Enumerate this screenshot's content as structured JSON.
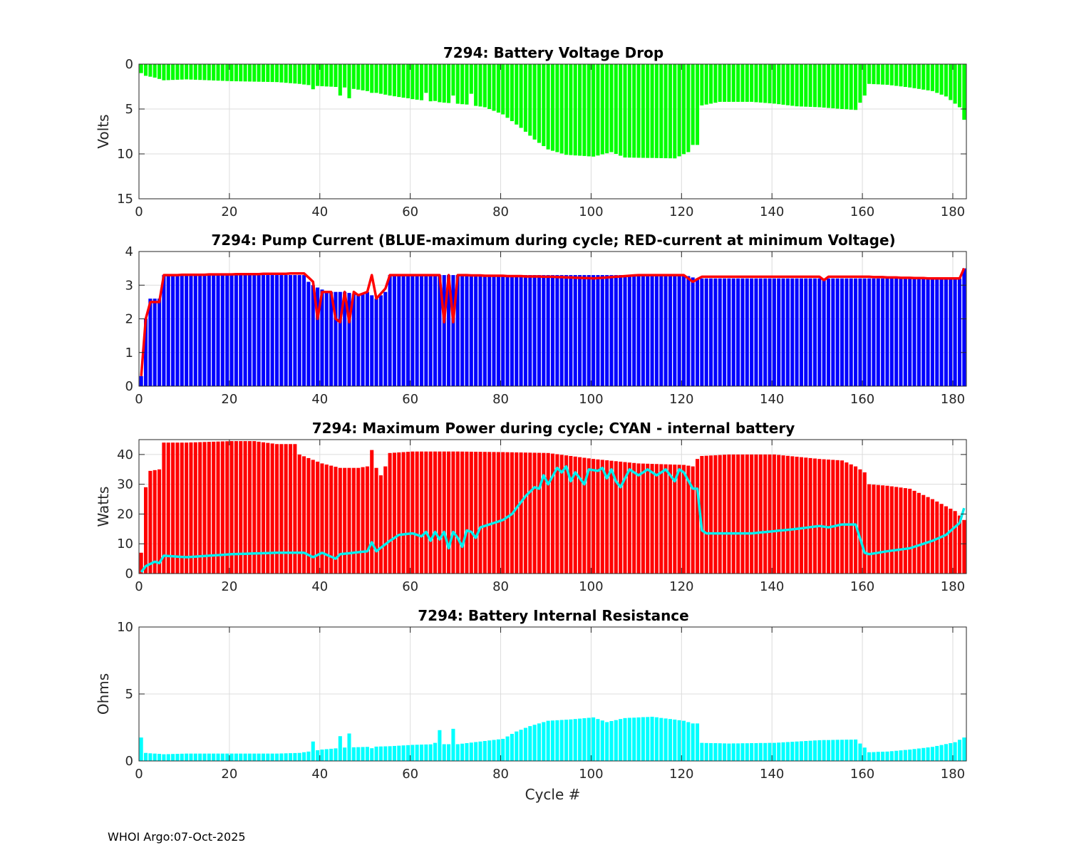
{
  "footer": "WHOI Argo:07-Oct-2025",
  "chart_data": [
    {
      "type": "bar",
      "title": "7294: Battery Voltage Drop",
      "xlabel": "",
      "ylabel": "Volts",
      "xlim": [
        0,
        183
      ],
      "ylim": [
        0,
        15
      ],
      "y_reversed": true,
      "xticks": [
        0,
        20,
        40,
        60,
        80,
        100,
        120,
        140,
        160,
        180
      ],
      "yticks": [
        0,
        5,
        10,
        15
      ],
      "grid": true,
      "colors": {
        "bar": "#00ff00"
      },
      "anchors": [
        [
          0,
          1.0
        ],
        [
          1,
          1.3
        ],
        [
          3,
          1.5
        ],
        [
          5,
          1.8
        ],
        [
          10,
          1.7
        ],
        [
          20,
          1.9
        ],
        [
          30,
          2.0
        ],
        [
          35,
          2.2
        ],
        [
          38,
          2.4
        ],
        [
          45,
          2.6
        ],
        [
          50,
          3.0
        ],
        [
          55,
          3.5
        ],
        [
          60,
          3.9
        ],
        [
          65,
          4.2
        ],
        [
          72,
          4.5
        ],
        [
          76,
          4.8
        ],
        [
          80,
          5.6
        ],
        [
          84,
          7.1
        ],
        [
          87,
          8.4
        ],
        [
          90,
          9.5
        ],
        [
          94,
          10.1
        ],
        [
          100,
          10.3
        ],
        [
          104,
          9.8
        ],
        [
          107,
          10.4
        ],
        [
          118,
          10.5
        ],
        [
          121,
          9.8
        ],
        [
          122,
          9.0
        ],
        [
          123,
          9.0
        ],
        [
          124,
          4.6
        ],
        [
          128,
          4.2
        ],
        [
          135,
          4.2
        ],
        [
          140,
          4.4
        ],
        [
          145,
          4.7
        ],
        [
          150,
          4.8
        ],
        [
          155,
          5.0
        ],
        [
          158,
          5.1
        ],
        [
          160,
          3.5
        ],
        [
          161,
          2.2
        ],
        [
          165,
          2.3
        ],
        [
          170,
          2.6
        ],
        [
          175,
          3.0
        ],
        [
          178,
          3.6
        ],
        [
          181,
          4.8
        ],
        [
          182,
          6.2
        ]
      ],
      "spikes": [
        [
          38,
          2.8
        ],
        [
          44,
          3.5
        ],
        [
          46,
          3.8
        ],
        [
          51,
          3.2
        ],
        [
          59,
          3.8
        ],
        [
          63,
          3.2
        ],
        [
          65,
          4.1
        ],
        [
          69,
          3.5
        ],
        [
          73,
          3.3
        ]
      ]
    },
    {
      "type": "bar",
      "title": "7294: Pump Current (BLUE-maximum during cycle; RED-current at minimum Voltage)",
      "xlabel": "",
      "ylabel": "",
      "xlim": [
        0,
        183
      ],
      "ylim": [
        0,
        4
      ],
      "xticks": [
        0,
        20,
        40,
        60,
        80,
        100,
        120,
        140,
        160,
        180
      ],
      "yticks": [
        0,
        1,
        2,
        3,
        4
      ],
      "grid": true,
      "colors": {
        "bar": "#0000ff",
        "line": "#ff0000"
      },
      "bar_anchors": [
        [
          0,
          0.3
        ],
        [
          1,
          2.0
        ],
        [
          2,
          2.6
        ],
        [
          4,
          2.6
        ],
        [
          5,
          3.3
        ],
        [
          36,
          3.3
        ],
        [
          37,
          3.1
        ],
        [
          38,
          3.0
        ],
        [
          41,
          2.8
        ],
        [
          45,
          2.8
        ],
        [
          48,
          2.7
        ],
        [
          50,
          2.8
        ],
        [
          52,
          2.6
        ],
        [
          54,
          2.8
        ],
        [
          55,
          3.3
        ],
        [
          70,
          3.3
        ],
        [
          90,
          3.3
        ],
        [
          100,
          3.3
        ],
        [
          120,
          3.3
        ],
        [
          123,
          3.2
        ],
        [
          140,
          3.2
        ],
        [
          160,
          3.2
        ],
        [
          181,
          3.2
        ],
        [
          182,
          3.5
        ]
      ],
      "line_anchors": [
        [
          0,
          0.3
        ],
        [
          1,
          2.0
        ],
        [
          2,
          2.5
        ],
        [
          4,
          2.5
        ],
        [
          5,
          3.3
        ],
        [
          36,
          3.35
        ],
        [
          38,
          3.1
        ],
        [
          39,
          2.0
        ],
        [
          40,
          2.8
        ],
        [
          42,
          2.8
        ],
        [
          43,
          2.0
        ],
        [
          44,
          1.9
        ],
        [
          45,
          2.8
        ],
        [
          46,
          1.9
        ],
        [
          47,
          2.8
        ],
        [
          48,
          2.7
        ],
        [
          50,
          2.8
        ],
        [
          51,
          3.3
        ],
        [
          52,
          2.6
        ],
        [
          54,
          2.9
        ],
        [
          55,
          3.3
        ],
        [
          66,
          3.3
        ],
        [
          67,
          1.9
        ],
        [
          68,
          3.3
        ],
        [
          69,
          1.9
        ],
        [
          70,
          3.3
        ],
        [
          90,
          3.25
        ],
        [
          100,
          3.2
        ],
        [
          110,
          3.3
        ],
        [
          120,
          3.3
        ],
        [
          122,
          3.1
        ],
        [
          124,
          3.25
        ],
        [
          150,
          3.25
        ],
        [
          151,
          3.15
        ],
        [
          152,
          3.25
        ],
        [
          160,
          3.25
        ],
        [
          175,
          3.2
        ],
        [
          181,
          3.2
        ],
        [
          182,
          3.5
        ]
      ]
    },
    {
      "type": "bar",
      "title": "7294: Maximum Power during cycle; CYAN - internal battery",
      "xlabel": "",
      "ylabel": "Watts",
      "xlim": [
        0,
        183
      ],
      "ylim": [
        0,
        45
      ],
      "xticks": [
        0,
        20,
        40,
        60,
        80,
        100,
        120,
        140,
        160,
        180
      ],
      "yticks": [
        0,
        10,
        20,
        30,
        40
      ],
      "grid": true,
      "colors": {
        "bar": "#ff0000",
        "line": "#00eeee"
      },
      "bar_anchors": [
        [
          0,
          7
        ],
        [
          1,
          29
        ],
        [
          2,
          34.5
        ],
        [
          4,
          35
        ],
        [
          5,
          44
        ],
        [
          10,
          44
        ],
        [
          20,
          44.5
        ],
        [
          25,
          44.5
        ],
        [
          30,
          43.5
        ],
        [
          34,
          43.5
        ],
        [
          35,
          40
        ],
        [
          40,
          37
        ],
        [
          44,
          35.5
        ],
        [
          48,
          35.5
        ],
        [
          50,
          36
        ],
        [
          51,
          41.5
        ],
        [
          52,
          35.5
        ],
        [
          53,
          33
        ],
        [
          54,
          36
        ],
        [
          55,
          40.5
        ],
        [
          60,
          41
        ],
        [
          70,
          41
        ],
        [
          80,
          40.8
        ],
        [
          90,
          40.5
        ],
        [
          100,
          38.5
        ],
        [
          110,
          37
        ],
        [
          120,
          36.5
        ],
        [
          122,
          36
        ],
        [
          123,
          38.5
        ],
        [
          124,
          39.5
        ],
        [
          130,
          40
        ],
        [
          140,
          40
        ],
        [
          150,
          38.5
        ],
        [
          155,
          38
        ],
        [
          158,
          36
        ],
        [
          160,
          34
        ],
        [
          161,
          30
        ],
        [
          165,
          29.5
        ],
        [
          170,
          28.5
        ],
        [
          175,
          25
        ],
        [
          180,
          21
        ],
        [
          182,
          18
        ]
      ],
      "line_anchors": [
        [
          0,
          0.5
        ],
        [
          1,
          2.5
        ],
        [
          3,
          4
        ],
        [
          4,
          3.5
        ],
        [
          5,
          6
        ],
        [
          10,
          5.5
        ],
        [
          20,
          6.5
        ],
        [
          30,
          7
        ],
        [
          36,
          7
        ],
        [
          38,
          5.5
        ],
        [
          40,
          7
        ],
        [
          43,
          5
        ],
        [
          44,
          6.5
        ],
        [
          50,
          7.5
        ],
        [
          51,
          10.5
        ],
        [
          52,
          7.5
        ],
        [
          55,
          11
        ],
        [
          57,
          13
        ],
        [
          60,
          13.5
        ],
        [
          62,
          12.5
        ],
        [
          63,
          14
        ],
        [
          64,
          11
        ],
        [
          65,
          14
        ],
        [
          66,
          11.5
        ],
        [
          67,
          14
        ],
        [
          68,
          8.5
        ],
        [
          69,
          14
        ],
        [
          70,
          12
        ],
        [
          71,
          9
        ],
        [
          72,
          14.5
        ],
        [
          73,
          14
        ],
        [
          74,
          12
        ],
        [
          75,
          15.5
        ],
        [
          80,
          18
        ],
        [
          82,
          20
        ],
        [
          85,
          26
        ],
        [
          87,
          29
        ],
        [
          88,
          28.5
        ],
        [
          89,
          33
        ],
        [
          90,
          30
        ],
        [
          92,
          35.5
        ],
        [
          93,
          34
        ],
        [
          94,
          36
        ],
        [
          95,
          31
        ],
        [
          96,
          34
        ],
        [
          97,
          32
        ],
        [
          98,
          30
        ],
        [
          99,
          35
        ],
        [
          101,
          34.5
        ],
        [
          102,
          35.5
        ],
        [
          103,
          32
        ],
        [
          104,
          35
        ],
        [
          105,
          31
        ],
        [
          106,
          29
        ],
        [
          108,
          35
        ],
        [
          110,
          33
        ],
        [
          112,
          35
        ],
        [
          114,
          33
        ],
        [
          116,
          35
        ],
        [
          118,
          31
        ],
        [
          119,
          35
        ],
        [
          120,
          34
        ],
        [
          122,
          28.5
        ],
        [
          123,
          28.5
        ],
        [
          124,
          14.5
        ],
        [
          125,
          13.5
        ],
        [
          135,
          13.5
        ],
        [
          145,
          15
        ],
        [
          150,
          16
        ],
        [
          152,
          15.5
        ],
        [
          155,
          16.5
        ],
        [
          158,
          16.5
        ],
        [
          160,
          7
        ],
        [
          161,
          6.5
        ],
        [
          165,
          7.5
        ],
        [
          170,
          8.5
        ],
        [
          175,
          11
        ],
        [
          178,
          13
        ],
        [
          181,
          17
        ],
        [
          182,
          22
        ]
      ]
    },
    {
      "type": "bar",
      "title": "7294: Battery Internal Resistance",
      "xlabel": "Cycle #",
      "ylabel": "Ohms",
      "xlim": [
        0,
        183
      ],
      "ylim": [
        0,
        10
      ],
      "xticks": [
        0,
        20,
        40,
        60,
        80,
        100,
        120,
        140,
        160,
        180
      ],
      "yticks": [
        0,
        5,
        10
      ],
      "grid": true,
      "colors": {
        "bar": "#00ffff"
      },
      "anchors": [
        [
          0,
          1.75
        ],
        [
          1,
          0.6
        ],
        [
          5,
          0.5
        ],
        [
          10,
          0.55
        ],
        [
          20,
          0.55
        ],
        [
          30,
          0.55
        ],
        [
          35,
          0.6
        ],
        [
          37,
          0.7
        ],
        [
          40,
          0.85
        ],
        [
          45,
          1.0
        ],
        [
          50,
          1.05
        ],
        [
          55,
          1.1
        ],
        [
          60,
          1.2
        ],
        [
          65,
          1.25
        ],
        [
          70,
          1.25
        ],
        [
          75,
          1.45
        ],
        [
          80,
          1.65
        ],
        [
          83,
          2.2
        ],
        [
          86,
          2.6
        ],
        [
          90,
          3.0
        ],
        [
          95,
          3.1
        ],
        [
          100,
          3.25
        ],
        [
          103,
          2.9
        ],
        [
          107,
          3.2
        ],
        [
          113,
          3.3
        ],
        [
          120,
          3.0
        ],
        [
          122,
          2.8
        ],
        [
          123,
          2.8
        ],
        [
          124,
          1.35
        ],
        [
          130,
          1.3
        ],
        [
          140,
          1.35
        ],
        [
          150,
          1.55
        ],
        [
          158,
          1.6
        ],
        [
          160,
          1.0
        ],
        [
          161,
          0.65
        ],
        [
          165,
          0.7
        ],
        [
          170,
          0.85
        ],
        [
          175,
          1.05
        ],
        [
          180,
          1.4
        ],
        [
          182,
          1.75
        ]
      ],
      "spikes": [
        [
          38,
          1.45
        ],
        [
          44,
          1.85
        ],
        [
          46,
          2.05
        ],
        [
          51,
          0.95
        ],
        [
          65,
          1.35
        ],
        [
          66,
          2.3
        ],
        [
          69,
          2.4
        ]
      ]
    }
  ]
}
